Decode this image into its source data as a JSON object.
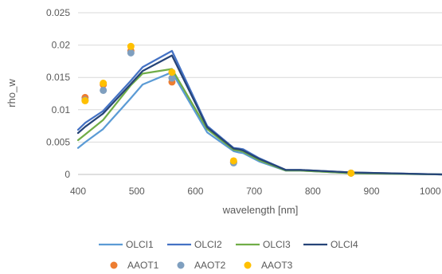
{
  "chart_data": {
    "type": "line",
    "xlabel": "wavelength [nm]",
    "ylabel": "rho_w",
    "xlim": [
      400,
      1020
    ],
    "ylim": [
      0,
      0.025
    ],
    "x_ticks": [
      "400",
      "500",
      "600",
      "700",
      "800",
      "900",
      "1000"
    ],
    "y_ticks": [
      "0",
      "0.005",
      "0.01",
      "0.015",
      "0.02",
      "0.025"
    ],
    "grid": true,
    "legend_position": "bottom",
    "series": [
      {
        "name": "OLCI1",
        "kind": "line",
        "color": "#5B9BD5",
        "x": [
          400,
          412.5,
          442.5,
          490,
          510,
          560,
          620,
          665,
          673.75,
          681.25,
          708.75,
          753.75,
          761.25,
          778.75,
          865,
          1020
        ],
        "y": [
          0.0041,
          0.005,
          0.007,
          0.0118,
          0.0139,
          0.0158,
          0.0065,
          0.0036,
          0.0034,
          0.0033,
          0.002,
          0.0006,
          0.0006,
          0.0006,
          0.0002,
          0.0
        ]
      },
      {
        "name": "OLCI2",
        "kind": "line",
        "color": "#4472C4",
        "x": [
          400,
          412.5,
          442.5,
          490,
          510,
          560,
          620,
          665,
          673.75,
          681.25,
          708.75,
          753.75,
          761.25,
          778.75,
          865,
          1020
        ],
        "y": [
          0.0069,
          0.008,
          0.0098,
          0.0145,
          0.0166,
          0.0191,
          0.0075,
          0.0041,
          0.004,
          0.0039,
          0.0025,
          0.0007,
          0.0007,
          0.0007,
          0.0003,
          0.0
        ]
      },
      {
        "name": "OLCI3",
        "kind": "line",
        "color": "#70AD47",
        "x": [
          400,
          412.5,
          442.5,
          490,
          510,
          560,
          620,
          665,
          673.75,
          681.25,
          708.75,
          753.75,
          761.25,
          778.75,
          865,
          1020
        ],
        "y": [
          0.0053,
          0.0062,
          0.0084,
          0.0138,
          0.0156,
          0.0163,
          0.007,
          0.0038,
          0.0037,
          0.0035,
          0.0022,
          0.0006,
          0.0006,
          0.0006,
          0.0002,
          0.0
        ]
      },
      {
        "name": "OLCI4",
        "kind": "line",
        "color": "#264478",
        "x": [
          400,
          412.5,
          442.5,
          490,
          510,
          560,
          620,
          665,
          673.75,
          681.25,
          708.75,
          753.75,
          761.25,
          778.75,
          865,
          1020
        ],
        "y": [
          0.0064,
          0.0074,
          0.0094,
          0.014,
          0.016,
          0.0184,
          0.0073,
          0.004,
          0.0039,
          0.0037,
          0.0024,
          0.0007,
          0.0007,
          0.0007,
          0.0003,
          0.0
        ]
      },
      {
        "name": "AAOT1",
        "kind": "scatter",
        "color": "#ED7D31",
        "x": [
          412,
          443,
          490,
          560,
          665,
          865
        ],
        "y": [
          0.0119,
          0.0139,
          0.0191,
          0.0143,
          0.0019,
          0.0002
        ]
      },
      {
        "name": "AAOT2",
        "kind": "scatter",
        "color": "#7F9FBF",
        "x": [
          412,
          443,
          490,
          560,
          665,
          865
        ],
        "y": [
          0.0115,
          0.013,
          0.0188,
          0.0149,
          0.0018,
          0.0002
        ]
      },
      {
        "name": "AAOT3",
        "kind": "scatter",
        "color": "#FFC000",
        "x": [
          412,
          443,
          490,
          560,
          665,
          865
        ],
        "y": [
          0.0114,
          0.0141,
          0.0198,
          0.0158,
          0.0021,
          0.0002
        ]
      }
    ]
  }
}
